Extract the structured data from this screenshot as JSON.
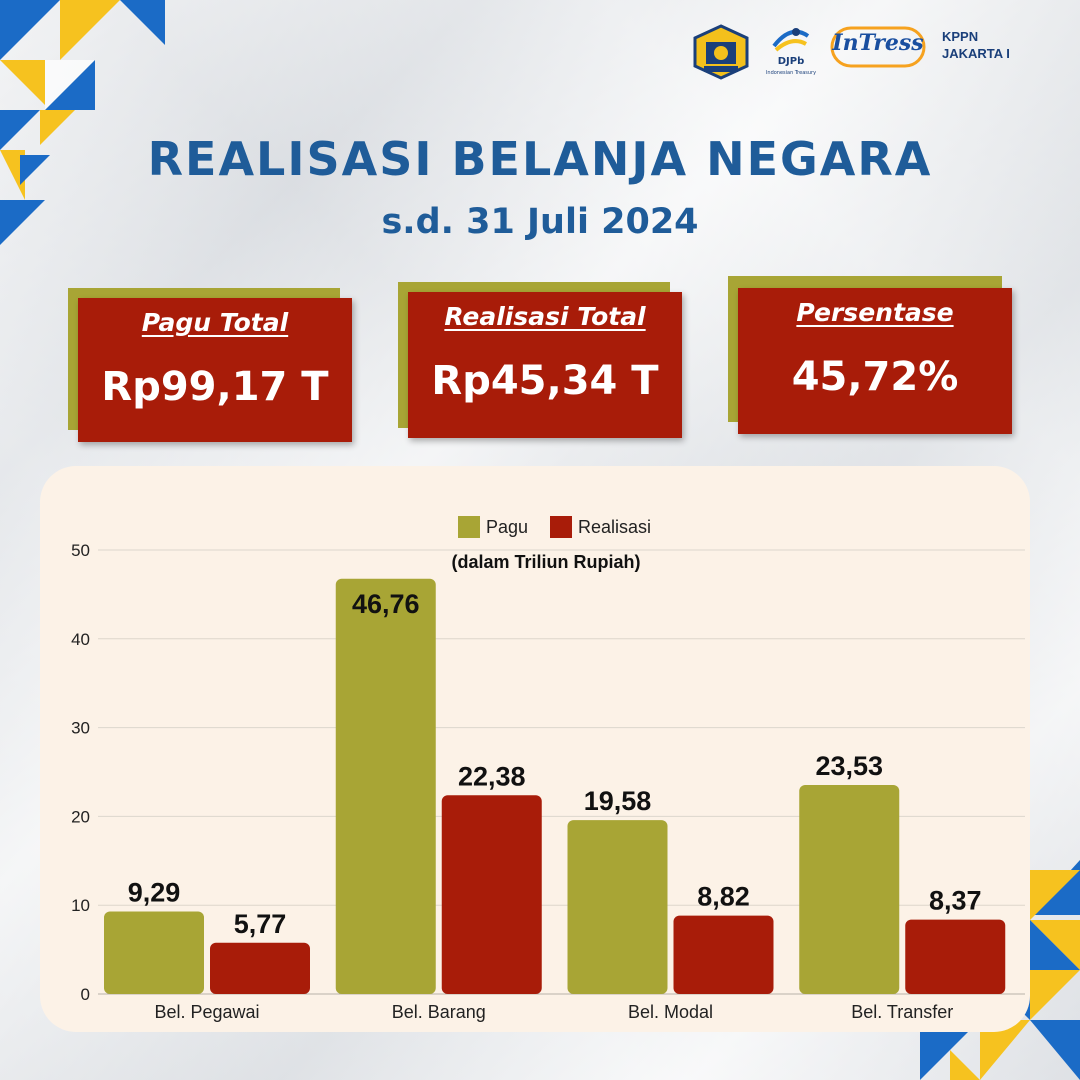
{
  "header": {
    "kppn_line1": "KPPN",
    "kppn_line2": "JAKARTA I",
    "djpb_logo_text": "DJPb",
    "djpb_logo_sub": "Indonesian Treasury",
    "intress_logo_text": "InTress"
  },
  "title": "REALISASI BELANJA NEGARA",
  "subtitle": "s.d. 31 Juli 2024",
  "cards": [
    {
      "label": "Pagu Total",
      "value": "Rp99,17 T"
    },
    {
      "label": "Realisasi Total",
      "value": "Rp45,34 T"
    },
    {
      "label": "Persentase",
      "value": "45,72%"
    }
  ],
  "colors": {
    "title_blue": "#1f5c99",
    "pagu_olive": "#a8a535",
    "realisasi_red": "#a81c09",
    "deco_blue": "#1b6bc6",
    "deco_yellow": "#f6c21f",
    "panel_bg": "#fcf2e7"
  },
  "chart_data": {
    "type": "bar",
    "annotation": "(dalam Triliun Rupiah)",
    "categories": [
      "Bel. Pegawai",
      "Bel. Barang",
      "Bel. Modal",
      "Bel. Transfer"
    ],
    "series": [
      {
        "name": "Pagu",
        "color": "#a8a535",
        "values": [
          9.29,
          46.76,
          19.58,
          23.53
        ],
        "labels": [
          "9,29",
          "46,76",
          "19,58",
          "23,53"
        ]
      },
      {
        "name": "Realisasi",
        "color": "#a81c09",
        "values": [
          5.77,
          22.38,
          8.82,
          8.37
        ],
        "labels": [
          "5,77",
          "22,38",
          "8,82",
          "8,37"
        ]
      }
    ],
    "ylim": [
      0,
      50
    ],
    "yticks": [
      0,
      10,
      20,
      30,
      40,
      50
    ],
    "legend": "top-center",
    "grid": true
  }
}
